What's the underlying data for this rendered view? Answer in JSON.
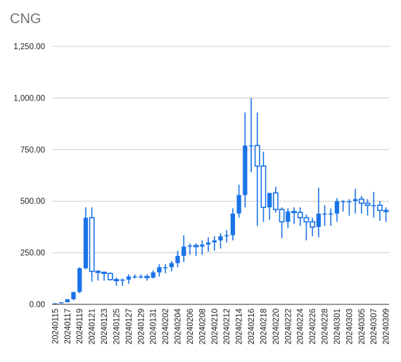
{
  "chart_data": {
    "type": "candlestick",
    "title": "CNG",
    "xlabel": "",
    "ylabel": "",
    "ylim": [
      0,
      1250
    ],
    "yticks": [
      "0.00",
      "250.00",
      "500.00",
      "750.00",
      "1,000.00",
      "1,250.00"
    ],
    "ytick_values": [
      0,
      250,
      500,
      750,
      1000,
      1250
    ],
    "grid": true,
    "legend": "none",
    "colors": {
      "up": "#1a73e8",
      "down": "#1a73e8",
      "grid": "#cccccc",
      "axis": "#333333"
    },
    "categories": [
      "20240115",
      "20240116",
      "20240117",
      "20240118",
      "20240119",
      "20240120",
      "20240121",
      "20240122",
      "20240123",
      "20240124",
      "20240125",
      "20240126",
      "20240127",
      "20240128",
      "20240129",
      "20240130",
      "20240131",
      "20240201",
      "20240202",
      "20240203",
      "20240204",
      "20240205",
      "20240206",
      "20240207",
      "20240208",
      "20240209",
      "20240210",
      "20240211",
      "20240212",
      "20240213",
      "20240214",
      "20240215",
      "20240216",
      "20240217",
      "20240218",
      "20240219",
      "20240220",
      "20240221",
      "20240222",
      "20240223",
      "20240224",
      "20240225",
      "20240226",
      "20240227",
      "20240228",
      "20240229",
      "20240301",
      "20240302",
      "20240303",
      "20240304",
      "20240305",
      "20240306",
      "20240307",
      "20240308",
      "20240309"
    ],
    "xtick_labels": [
      "20240115",
      "20240117",
      "20240119",
      "20240121",
      "20240123",
      "20240125",
      "20240127",
      "20240129",
      "20240131",
      "20240202",
      "20240204",
      "20240206",
      "20240208",
      "20240210",
      "20240212",
      "20240214",
      "20240216",
      "20240218",
      "20240220",
      "20240222",
      "20240224",
      "20240226",
      "20240228",
      "20240301",
      "20240303",
      "20240305",
      "20240307",
      "20240309"
    ],
    "open": [
      0,
      5,
      10,
      25,
      60,
      175,
      420,
      160,
      155,
      150,
      120,
      115,
      120,
      135,
      135,
      135,
      130,
      155,
      180,
      180,
      200,
      235,
      280,
      285,
      280,
      290,
      300,
      310,
      330,
      335,
      440,
      530,
      770,
      770,
      670,
      470,
      540,
      460,
      400,
      450,
      445,
      420,
      400,
      375,
      440,
      440,
      440,
      500,
      500,
      500,
      510,
      490,
      480,
      480,
      455
    ],
    "close": [
      5,
      10,
      25,
      60,
      175,
      420,
      160,
      155,
      150,
      120,
      115,
      120,
      135,
      135,
      135,
      130,
      155,
      180,
      180,
      200,
      235,
      280,
      285,
      280,
      290,
      300,
      310,
      330,
      335,
      440,
      530,
      770,
      770,
      670,
      470,
      540,
      460,
      400,
      450,
      445,
      420,
      400,
      375,
      440,
      440,
      440,
      500,
      500,
      500,
      510,
      490,
      480,
      480,
      455,
      450
    ],
    "high": [
      5,
      10,
      25,
      60,
      180,
      470,
      470,
      165,
      160,
      155,
      130,
      125,
      145,
      145,
      145,
      145,
      165,
      195,
      195,
      210,
      260,
      335,
      295,
      295,
      310,
      325,
      330,
      345,
      360,
      465,
      580,
      930,
      1000,
      930,
      740,
      540,
      570,
      470,
      465,
      470,
      470,
      435,
      420,
      565,
      480,
      465,
      515,
      505,
      510,
      560,
      525,
      510,
      545,
      500,
      470
    ],
    "low": [
      0,
      5,
      10,
      20,
      55,
      170,
      110,
      115,
      115,
      115,
      90,
      90,
      100,
      125,
      125,
      115,
      125,
      135,
      150,
      160,
      180,
      205,
      240,
      235,
      240,
      255,
      260,
      270,
      300,
      310,
      420,
      470,
      640,
      380,
      400,
      410,
      445,
      320,
      370,
      390,
      380,
      310,
      330,
      325,
      380,
      380,
      400,
      450,
      430,
      440,
      440,
      430,
      420,
      405,
      400
    ]
  }
}
